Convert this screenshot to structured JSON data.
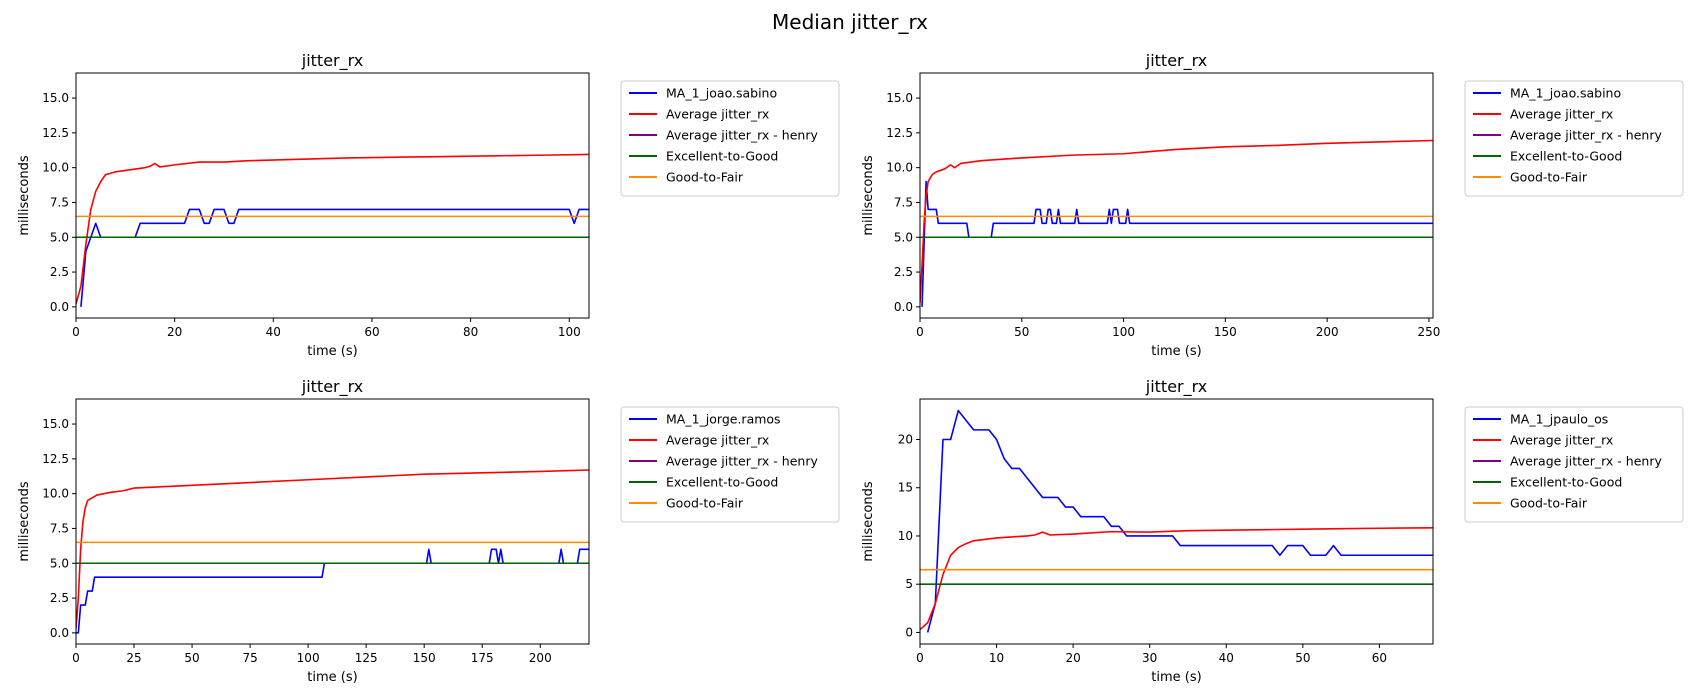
{
  "figure": {
    "title": "Median jitter_rx"
  },
  "colors": {
    "user": "#0000ff",
    "avg": "#ff0000",
    "henry": "#800080",
    "excellent_good": "#006400",
    "good_fair": "#ff8c00"
  },
  "chart_data": [
    {
      "type": "line",
      "title": "jitter_rx",
      "xlabel": "time (s)",
      "ylabel": "milliseconds",
      "xlim": [
        0,
        104
      ],
      "ylim": [
        -0.8,
        16.8
      ],
      "xticks": [
        0,
        20,
        40,
        60,
        80,
        100
      ],
      "yticks": [
        0.0,
        2.5,
        5.0,
        7.5,
        10.0,
        12.5,
        15.0
      ],
      "yfmt": 1,
      "legend_position": "outside-right",
      "series": [
        {
          "name": "MA_1_joao.sabino",
          "color": "#0000ff",
          "points": [
            [
              1,
              0
            ],
            [
              2,
              4
            ],
            [
              3,
              5
            ],
            [
              4,
              6
            ],
            [
              5,
              5
            ],
            [
              12,
              5
            ],
            [
              13,
              6
            ],
            [
              22,
              6
            ],
            [
              23,
              7
            ],
            [
              25,
              7
            ],
            [
              26,
              6
            ],
            [
              27,
              6
            ],
            [
              28,
              7
            ],
            [
              30,
              7
            ],
            [
              31,
              6
            ],
            [
              32,
              6
            ],
            [
              33,
              7
            ],
            [
              100,
              7
            ],
            [
              101,
              6
            ],
            [
              102,
              7
            ],
            [
              104,
              7
            ]
          ]
        },
        {
          "name": "Average jitter_rx",
          "color": "#ff0000",
          "points": [
            [
              0,
              0.2
            ],
            [
              1,
              1.5
            ],
            [
              2,
              4.5
            ],
            [
              3,
              7
            ],
            [
              4,
              8.3
            ],
            [
              5,
              9
            ],
            [
              6,
              9.5
            ],
            [
              8,
              9.7
            ],
            [
              10,
              9.8
            ],
            [
              12,
              9.9
            ],
            [
              14,
              10
            ],
            [
              15,
              10.1
            ],
            [
              16,
              10.3
            ],
            [
              17,
              10.05
            ],
            [
              20,
              10.2
            ],
            [
              25,
              10.4
            ],
            [
              30,
              10.4
            ],
            [
              35,
              10.5
            ],
            [
              45,
              10.6
            ],
            [
              55,
              10.7
            ],
            [
              65,
              10.75
            ],
            [
              75,
              10.8
            ],
            [
              85,
              10.85
            ],
            [
              95,
              10.9
            ],
            [
              104,
              10.95
            ]
          ]
        },
        {
          "name": "Average jitter_rx - henry",
          "color": "#800080",
          "points": []
        },
        {
          "name": "Excellent-to-Good",
          "color": "#006400",
          "points": [
            [
              0,
              5
            ],
            [
              104,
              5
            ]
          ]
        },
        {
          "name": "Good-to-Fair",
          "color": "#ff8c00",
          "points": [
            [
              0,
              6.5
            ],
            [
              104,
              6.5
            ]
          ]
        }
      ]
    },
    {
      "type": "line",
      "title": "jitter_rx",
      "xlabel": "time (s)",
      "ylabel": "milliseconds",
      "xlim": [
        0,
        252
      ],
      "ylim": [
        -0.8,
        16.8
      ],
      "xticks": [
        0,
        50,
        100,
        150,
        200,
        250
      ],
      "yticks": [
        0.0,
        2.5,
        5.0,
        7.5,
        10.0,
        12.5,
        15.0
      ],
      "yfmt": 1,
      "legend_position": "outside-right",
      "series": [
        {
          "name": "MA_1_joao.sabino",
          "color": "#0000ff",
          "points": [
            [
              1,
              0
            ],
            [
              3,
              9
            ],
            [
              4,
              7
            ],
            [
              8,
              7
            ],
            [
              9,
              6
            ],
            [
              23,
              6
            ],
            [
              24,
              5
            ],
            [
              35,
              5
            ],
            [
              36,
              6
            ],
            [
              56,
              6
            ],
            [
              57,
              7
            ],
            [
              59,
              7
            ],
            [
              60,
              6
            ],
            [
              62,
              6
            ],
            [
              63,
              7
            ],
            [
              64,
              7
            ],
            [
              65,
              6
            ],
            [
              67,
              6
            ],
            [
              68,
              7
            ],
            [
              69,
              6
            ],
            [
              76,
              6
            ],
            [
              77,
              7
            ],
            [
              78,
              6
            ],
            [
              92,
              6
            ],
            [
              93,
              7
            ],
            [
              94,
              6
            ],
            [
              95,
              7
            ],
            [
              97,
              7
            ],
            [
              98,
              6
            ],
            [
              101,
              6
            ],
            [
              102,
              7
            ],
            [
              103,
              6
            ],
            [
              252,
              6
            ]
          ]
        },
        {
          "name": "Average jitter_rx",
          "color": "#ff0000",
          "points": [
            [
              0,
              0.3
            ],
            [
              1,
              3
            ],
            [
              2,
              6
            ],
            [
              3,
              8
            ],
            [
              4,
              9
            ],
            [
              6,
              9.5
            ],
            [
              8,
              9.7
            ],
            [
              10,
              9.8
            ],
            [
              12,
              9.9
            ],
            [
              15,
              10.2
            ],
            [
              17,
              10
            ],
            [
              20,
              10.3
            ],
            [
              30,
              10.5
            ],
            [
              50,
              10.7
            ],
            [
              75,
              10.9
            ],
            [
              100,
              11
            ],
            [
              125,
              11.3
            ],
            [
              150,
              11.5
            ],
            [
              175,
              11.6
            ],
            [
              200,
              11.75
            ],
            [
              225,
              11.85
            ],
            [
              252,
              11.95
            ]
          ]
        },
        {
          "name": "Average jitter_rx - henry",
          "color": "#800080",
          "points": []
        },
        {
          "name": "Excellent-to-Good",
          "color": "#006400",
          "points": [
            [
              0,
              5
            ],
            [
              252,
              5
            ]
          ]
        },
        {
          "name": "Good-to-Fair",
          "color": "#ff8c00",
          "points": [
            [
              0,
              6.5
            ],
            [
              252,
              6.5
            ]
          ]
        }
      ]
    },
    {
      "type": "line",
      "title": "jitter_rx",
      "xlabel": "time (s)",
      "ylabel": "milliseconds",
      "xlim": [
        0,
        221
      ],
      "ylim": [
        -0.8,
        16.8
      ],
      "xticks": [
        0,
        25,
        50,
        75,
        100,
        125,
        150,
        175,
        200
      ],
      "yticks": [
        0.0,
        2.5,
        5.0,
        7.5,
        10.0,
        12.5,
        15.0
      ],
      "yfmt": 1,
      "legend_position": "outside-right",
      "series": [
        {
          "name": "MA_1_jorge.ramos",
          "color": "#0000ff",
          "points": [
            [
              0,
              0
            ],
            [
              1,
              0
            ],
            [
              2,
              2
            ],
            [
              4,
              2
            ],
            [
              5,
              3
            ],
            [
              7,
              3
            ],
            [
              8,
              4
            ],
            [
              106,
              4
            ],
            [
              107,
              5
            ],
            [
              151,
              5
            ],
            [
              152,
              6
            ],
            [
              153,
              5
            ],
            [
              178,
              5
            ],
            [
              179,
              6
            ],
            [
              181,
              6
            ],
            [
              182,
              5
            ],
            [
              183,
              6
            ],
            [
              184,
              5
            ],
            [
              208,
              5
            ],
            [
              209,
              6
            ],
            [
              210,
              5
            ],
            [
              216,
              5
            ],
            [
              217,
              6
            ],
            [
              221,
              6
            ]
          ]
        },
        {
          "name": "Average jitter_rx",
          "color": "#ff0000",
          "points": [
            [
              0,
              0.3
            ],
            [
              1,
              2.5
            ],
            [
              2,
              6
            ],
            [
              3,
              8
            ],
            [
              4,
              9
            ],
            [
              5,
              9.5
            ],
            [
              7,
              9.7
            ],
            [
              9,
              9.9
            ],
            [
              12,
              10
            ],
            [
              15,
              10.1
            ],
            [
              20,
              10.2
            ],
            [
              25,
              10.4
            ],
            [
              50,
              10.6
            ],
            [
              75,
              10.8
            ],
            [
              100,
              11
            ],
            [
              125,
              11.2
            ],
            [
              150,
              11.4
            ],
            [
              175,
              11.5
            ],
            [
              200,
              11.6
            ],
            [
              221,
              11.7
            ]
          ]
        },
        {
          "name": "Average jitter_rx - henry",
          "color": "#800080",
          "points": []
        },
        {
          "name": "Excellent-to-Good",
          "color": "#006400",
          "points": [
            [
              0,
              5
            ],
            [
              221,
              5
            ]
          ]
        },
        {
          "name": "Good-to-Fair",
          "color": "#ff8c00",
          "points": [
            [
              0,
              6.5
            ],
            [
              221,
              6.5
            ]
          ]
        }
      ]
    },
    {
      "type": "line",
      "title": "jitter_rx",
      "xlabel": "time (s)",
      "ylabel": "milliseconds",
      "xlim": [
        0,
        67
      ],
      "ylim": [
        -1.2,
        24.2
      ],
      "xticks": [
        0,
        10,
        20,
        30,
        40,
        50,
        60
      ],
      "yticks": [
        0,
        5,
        10,
        15,
        20
      ],
      "yfmt": 0,
      "legend_position": "outside-right",
      "series": [
        {
          "name": "MA_1_jpaulo_os",
          "color": "#0000ff",
          "points": [
            [
              1,
              0
            ],
            [
              2,
              3
            ],
            [
              3,
              20
            ],
            [
              4,
              20
            ],
            [
              5,
              23
            ],
            [
              6,
              22
            ],
            [
              7,
              21
            ],
            [
              9,
              21
            ],
            [
              10,
              20
            ],
            [
              11,
              18
            ],
            [
              12,
              17
            ],
            [
              13,
              17
            ],
            [
              14,
              16
            ],
            [
              15,
              15
            ],
            [
              16,
              14
            ],
            [
              18,
              14
            ],
            [
              19,
              13
            ],
            [
              20,
              13
            ],
            [
              21,
              12
            ],
            [
              24,
              12
            ],
            [
              25,
              11
            ],
            [
              26,
              11
            ],
            [
              27,
              10
            ],
            [
              33,
              10
            ],
            [
              34,
              9
            ],
            [
              46,
              9
            ],
            [
              47,
              8
            ],
            [
              48,
              9
            ],
            [
              50,
              9
            ],
            [
              51,
              8
            ],
            [
              53,
              8
            ],
            [
              54,
              9
            ],
            [
              55,
              8
            ],
            [
              67,
              8
            ]
          ]
        },
        {
          "name": "Average jitter_rx",
          "color": "#ff0000",
          "points": [
            [
              0,
              0.3
            ],
            [
              1,
              1
            ],
            [
              2,
              3
            ],
            [
              3,
              6
            ],
            [
              4,
              8
            ],
            [
              5,
              8.8
            ],
            [
              6,
              9.2
            ],
            [
              7,
              9.5
            ],
            [
              8,
              9.6
            ],
            [
              10,
              9.8
            ],
            [
              12,
              9.9
            ],
            [
              14,
              10
            ],
            [
              15,
              10.1
            ],
            [
              16,
              10.4
            ],
            [
              17,
              10.1
            ],
            [
              20,
              10.2
            ],
            [
              25,
              10.45
            ],
            [
              30,
              10.4
            ],
            [
              35,
              10.55
            ],
            [
              40,
              10.6
            ],
            [
              45,
              10.65
            ],
            [
              50,
              10.7
            ],
            [
              55,
              10.75
            ],
            [
              60,
              10.8
            ],
            [
              67,
              10.85
            ]
          ]
        },
        {
          "name": "Average jitter_rx - henry",
          "color": "#800080",
          "points": []
        },
        {
          "name": "Excellent-to-Good",
          "color": "#006400",
          "points": [
            [
              0,
              5
            ],
            [
              67,
              5
            ]
          ]
        },
        {
          "name": "Good-to-Fair",
          "color": "#ff8c00",
          "points": [
            [
              0,
              6.5
            ],
            [
              67,
              6.5
            ]
          ]
        }
      ]
    }
  ]
}
